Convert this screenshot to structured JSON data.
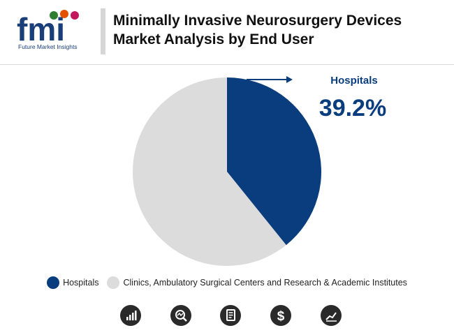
{
  "header": {
    "logo_text": "fmi",
    "logo_subtitle": "Future Market Insights",
    "title_line1": "Minimally Invasive Neurosurgery Devices",
    "title_line2": "Market Analysis by End User"
  },
  "colors": {
    "hospitals": "#0a3d7e",
    "other": "#dcdcdc",
    "accent": "#0a3d7e"
  },
  "callout": {
    "label": "Hospitals",
    "value": "39.2%"
  },
  "chart_data": {
    "type": "pie",
    "title": "Minimally Invasive Neurosurgery Devices Market Analysis by End User",
    "slices": [
      {
        "label": "Hospitals",
        "value": 39.2
      },
      {
        "label": "Clinics, Ambulatory Surgical Centers and Research & Academic Institutes",
        "value": 60.8
      }
    ],
    "legend_position": "bottom"
  },
  "legend": [
    {
      "label": "Hospitals"
    },
    {
      "label": "Clinics, Ambulatory Surgical Centers and Research & Academic Institutes"
    }
  ],
  "bottom_icons": [
    "bar-chart-icon",
    "search-analytics-icon",
    "report-document-icon",
    "dollar-icon",
    "line-chart-icon"
  ]
}
